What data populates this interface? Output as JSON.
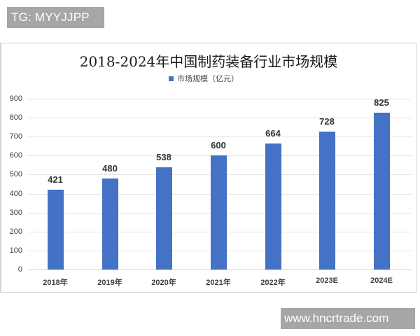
{
  "watermarks": {
    "top_left": "TG: MYYJJPP",
    "bottom_right": "www.hncrtrade.com"
  },
  "chart": {
    "title": "2018-2024年中国制药装备行业市场规模",
    "legend_label": "市场规模（亿元）",
    "bar_color": "#4472c4",
    "y_ticks": [
      "0",
      "100",
      "200",
      "300",
      "400",
      "500",
      "600",
      "700",
      "800",
      "900"
    ],
    "categories": [
      "2018年",
      "2019年",
      "2020年",
      "2021年",
      "2022年",
      "2023E",
      "2024E"
    ],
    "values": [
      "421",
      "480",
      "538",
      "600",
      "664",
      "728",
      "825"
    ]
  },
  "chart_data": {
    "type": "bar",
    "title": "2018-2024年中国制药装备行业市场规模",
    "categories": [
      "2018年",
      "2019年",
      "2020年",
      "2021年",
      "2022年",
      "2023E",
      "2024E"
    ],
    "series": [
      {
        "name": "市场规模（亿元）",
        "values": [
          421,
          480,
          538,
          600,
          664,
          728,
          825
        ]
      }
    ],
    "xlabel": "",
    "ylabel": "",
    "ylim": [
      0,
      900
    ],
    "yticks": [
      0,
      100,
      200,
      300,
      400,
      500,
      600,
      700,
      800,
      900
    ],
    "grid": true,
    "legend_position": "top",
    "data_labels": true
  }
}
